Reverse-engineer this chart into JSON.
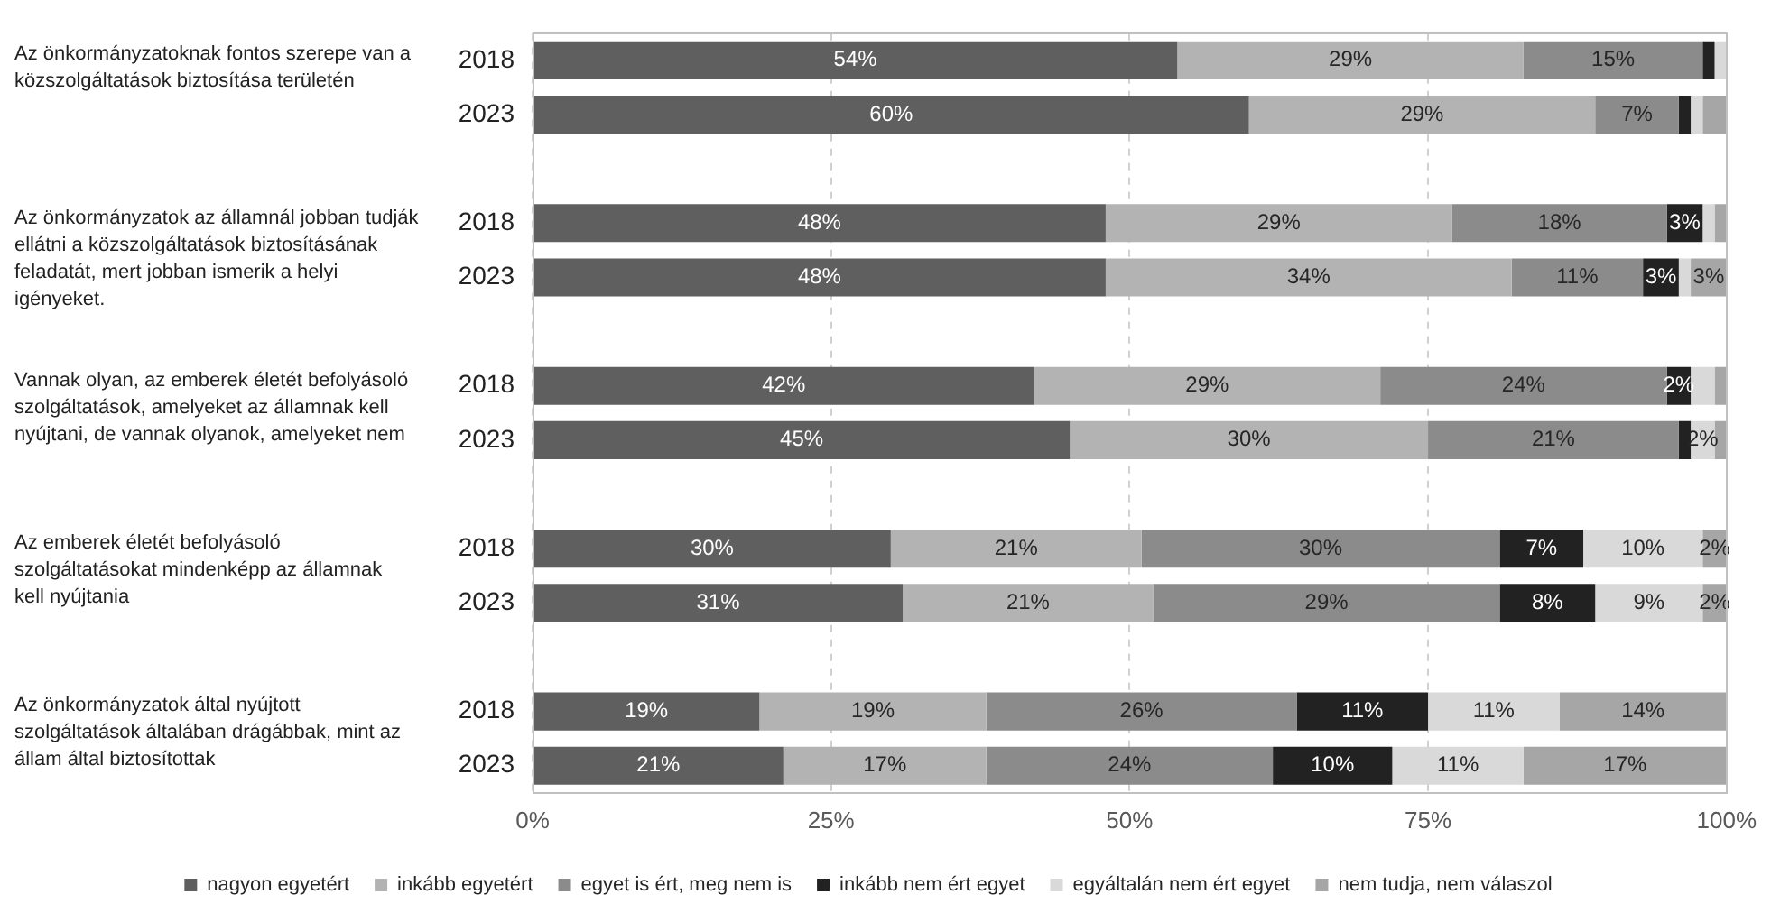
{
  "chart_data": {
    "type": "bar",
    "orientation": "horizontal",
    "stacked": true,
    "categories": [
      "2018",
      "2023",
      null,
      "2018",
      "2023",
      null,
      "2018",
      "2023",
      null,
      "2018",
      "2023",
      null,
      "2018",
      "2023"
    ],
    "series": [
      {
        "name": "nagyon egyetért",
        "color": "#5f5f5f",
        "values": [
          54,
          60,
          null,
          48,
          48,
          null,
          42,
          45,
          null,
          30,
          31,
          null,
          19,
          21
        ],
        "value_labels": [
          "54%",
          "60%",
          null,
          "48%",
          "48%",
          null,
          "42%",
          "45%",
          null,
          "30%",
          "31%",
          null,
          "19%",
          "21%"
        ]
      },
      {
        "name": "inkább egyetért",
        "color": "#b3b3b3",
        "values": [
          29,
          29,
          null,
          29,
          34,
          null,
          29,
          30,
          null,
          21,
          21,
          null,
          19,
          17
        ],
        "value_labels": [
          "29%",
          "29%",
          null,
          "29%",
          "34%",
          null,
          "29%",
          "30%",
          null,
          "21%",
          "21%",
          null,
          "19%",
          "17%"
        ]
      },
      {
        "name": "egyet is ért, meg nem is",
        "color": "#8b8b8b",
        "values": [
          15,
          7,
          null,
          18,
          11,
          null,
          24,
          21,
          null,
          30,
          29,
          null,
          26,
          24
        ],
        "value_labels": [
          "15%",
          "7%",
          null,
          "18%",
          "11%",
          null,
          "24%",
          "21%",
          null,
          "30%",
          "29%",
          null,
          "26%",
          "24%"
        ]
      },
      {
        "name": "inkább nem ért egyet",
        "color": "#222222",
        "values": [
          1,
          1,
          null,
          3,
          3,
          null,
          2,
          1,
          null,
          7,
          8,
          null,
          11,
          10
        ],
        "value_labels": [
          null,
          null,
          null,
          "3%",
          "3%",
          null,
          "2%",
          null,
          null,
          "7%",
          "8%",
          null,
          "11%",
          "10%"
        ]
      },
      {
        "name": "egyáltalán nem ért egyet",
        "color": "#d9d9d9",
        "values": [
          1,
          1,
          null,
          1,
          1,
          null,
          2,
          2,
          null,
          10,
          9,
          null,
          11,
          11
        ],
        "value_labels": [
          null,
          null,
          null,
          null,
          null,
          null,
          null,
          "2%",
          null,
          "10%",
          "9%",
          null,
          "11%",
          "11%"
        ]
      },
      {
        "name": "nem tudja, nem válaszol",
        "color": "#a6a6a6",
        "values": [
          0,
          2,
          null,
          1,
          3,
          null,
          1,
          1,
          null,
          2,
          2,
          null,
          14,
          17
        ],
        "value_labels": [
          null,
          null,
          null,
          null,
          "3%",
          null,
          null,
          null,
          null,
          "2%",
          "2%",
          null,
          "14%",
          "17%"
        ]
      }
    ],
    "xlim": [
      0,
      100
    ],
    "xticks": [
      {
        "value": 0,
        "label": "0%"
      },
      {
        "value": 25,
        "label": "25%"
      },
      {
        "value": 50,
        "label": "50%"
      },
      {
        "value": 75,
        "label": "75%"
      },
      {
        "value": 100,
        "label": "100%"
      }
    ],
    "grid": "x",
    "legend": "bottom",
    "annotations": [
      "Az önkormányzatoknak fontos szerepe van a\nközszolgáltatások biztosítása területén",
      "Az önkormányzatok az államnál jobban tudják\nellátni a közszolgáltatások biztosításának\nfeladatát, mert jobban ismerik a helyi\nigényeket.",
      "Vannak olyan, az emberek életét befolyásoló\nszolgáltatások, amelyeket az államnak kell\nnyújtani, de vannak olyanok, amelyeket nem",
      "Az emberek életét befolyásoló\nszolgáltatásokat mindenképp az államnak\nkell nyújtania",
      "Az önkormányzatok által nyújtott\nszolgáltatások általában drágábbak, mint az\nállam által biztosítottak"
    ]
  }
}
